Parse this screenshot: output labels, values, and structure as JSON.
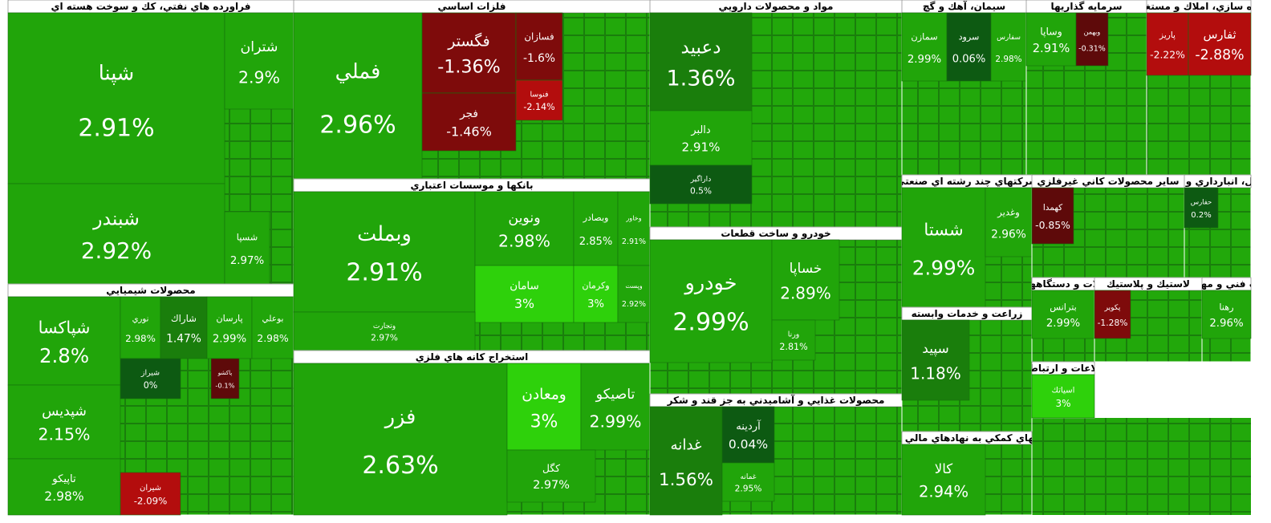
{
  "chart_data": {
    "type": "treemap",
    "sectors": [
      {
        "name": "فراورده هاي نفتي، كك و سوخت هسته اي",
        "stocks": [
          "شپنا",
          "شبندر",
          "شتران",
          "شسپا"
        ],
        "values": [
          2.91,
          2.92,
          2.9,
          2.97
        ],
        "value_labels": [
          "2.91%",
          "2.92%",
          "2.9%",
          "2.97%"
        ]
      },
      {
        "name": "محصولات شيميايي",
        "stocks": [
          "شپاكسا",
          "شپديس",
          "تاپيكو",
          "نوري",
          "شاراك",
          "پارسان",
          "بوعلي",
          "شيراز",
          "پاكشو",
          "شيران"
        ],
        "values": [
          2.8,
          2.15,
          2.98,
          2.98,
          1.47,
          2.99,
          2.98,
          0,
          -0.1,
          -2.09
        ],
        "value_labels": [
          "2.8%",
          "2.15%",
          "2.98%",
          "2.98%",
          "1.47%",
          "2.99%",
          "2.98%",
          "0%",
          "-0.1%",
          "-2.09%"
        ]
      },
      {
        "name": "فلزات اساسي",
        "stocks": [
          "فملي",
          "فگستر",
          "فجر",
          "فسازان",
          "فنوسا"
        ],
        "values": [
          2.96,
          -1.36,
          -1.46,
          -1.6,
          -2.14
        ],
        "value_labels": [
          "2.96%",
          "-1.36%",
          "-1.46%",
          "-1.6%",
          "-2.14%"
        ]
      },
      {
        "name": "بانكها و موسسات اعتباري",
        "stocks": [
          "وبملت",
          "ونوين",
          "وبصادر",
          "وخاور",
          "سامان",
          "وكرمان",
          "وپست",
          "وتجارت"
        ],
        "values": [
          2.91,
          2.98,
          2.85,
          2.91,
          3,
          3,
          2.92,
          2.97
        ],
        "value_labels": [
          "2.91%",
          "2.98%",
          "2.85%",
          "2.91%",
          "3%",
          "3%",
          "2.92%",
          "2.97%"
        ]
      },
      {
        "name": "استخراج كانه هاي فلزي",
        "stocks": [
          "فزر",
          "ومعادن",
          "تاصيكو",
          "كگل"
        ],
        "values": [
          2.63,
          3,
          2.99,
          2.97
        ],
        "value_labels": [
          "2.63%",
          "3%",
          "2.99%",
          "2.97%"
        ]
      },
      {
        "name": "مواد و محصولات دارويي",
        "stocks": [
          "دعبيد",
          "دالبر",
          "داراگير"
        ],
        "values": [
          1.36,
          2.91,
          0.5
        ],
        "value_labels": [
          "1.36%",
          "2.91%",
          "0.5%"
        ]
      },
      {
        "name": "خودرو و ساخت قطعات",
        "stocks": [
          "خودرو",
          "خساپا",
          "ورنا"
        ],
        "values": [
          2.99,
          2.89,
          2.81
        ],
        "value_labels": [
          "2.99%",
          "2.89%",
          "2.81%"
        ]
      },
      {
        "name": "محصولات غذايي و آشاميدني به جز قند و شكر",
        "stocks": [
          "غدانه",
          "آردينه",
          "غمانه"
        ],
        "values": [
          1.56,
          0.04,
          2.95
        ],
        "value_labels": [
          "1.56%",
          "0.04%",
          "2.95%"
        ]
      },
      {
        "name": "سيمان، آهك و گچ",
        "stocks": [
          "سمازن",
          "سرود",
          "سفارس"
        ],
        "values": [
          2.99,
          0.06,
          2.98
        ],
        "value_labels": [
          "2.99%",
          "0.06%",
          "2.98%"
        ]
      },
      {
        "name": "سرمايه گذاريها",
        "stocks": [
          "وساپا",
          "وبهمن"
        ],
        "values": [
          2.91,
          -0.31
        ],
        "value_labels": [
          "2.91%",
          "-0.31%"
        ]
      },
      {
        "name": "انبوه سازي، املاك و مستغلات",
        "stocks": [
          "پاريز",
          "ثفارس"
        ],
        "values": [
          -2.22,
          -2.88
        ],
        "value_labels": [
          "-2.22%",
          "-2.88%"
        ]
      },
      {
        "name": "شركتهاي چند رشته اي صنعتي",
        "stocks": [
          "شستا",
          "وغدير"
        ],
        "values": [
          2.99,
          2.96
        ],
        "value_labels": [
          "2.99%",
          "2.96%"
        ]
      },
      {
        "name": "زراعت و خدمات وابسته",
        "stocks": [
          "سپيد"
        ],
        "values": [
          1.18
        ],
        "value_labels": [
          "1.18%"
        ]
      },
      {
        "name": "فعاليتهاي كمكي به نهادهاي مالي واسط",
        "stocks": [
          "كالا"
        ],
        "values": [
          2.94
        ],
        "value_labels": [
          "2.94%"
        ]
      },
      {
        "name": "ساير محصولات كاني غيرفلزي",
        "stocks": [
          "كهمدا"
        ],
        "values": [
          -0.85
        ],
        "value_labels": [
          "-0.85%"
        ]
      },
      {
        "name": "حمل ونقل، انبارداري و ارتباطات",
        "stocks": [
          "حفارس"
        ],
        "values": [
          0.2
        ],
        "value_labels": [
          "0.2%"
        ]
      },
      {
        "name": "ماشين آلات و دستگاههاي برقي",
        "stocks": [
          "بترانس"
        ],
        "values": [
          2.99
        ],
        "value_labels": [
          "2.99%"
        ]
      },
      {
        "name": "لاستيك و پلاستيك",
        "stocks": [
          "پكوير"
        ],
        "values": [
          -1.28
        ],
        "value_labels": [
          "-1.28%"
        ]
      },
      {
        "name": "خدمات فني و مهندسي",
        "stocks": [
          "رهنا"
        ],
        "values": [
          2.96
        ],
        "value_labels": [
          "2.96%"
        ]
      },
      {
        "name": "اطلاعات و ارتباطات",
        "stocks": [
          "اسياتك"
        ],
        "values": [
          3
        ],
        "value_labels": [
          "3%"
        ]
      }
    ]
  }
}
